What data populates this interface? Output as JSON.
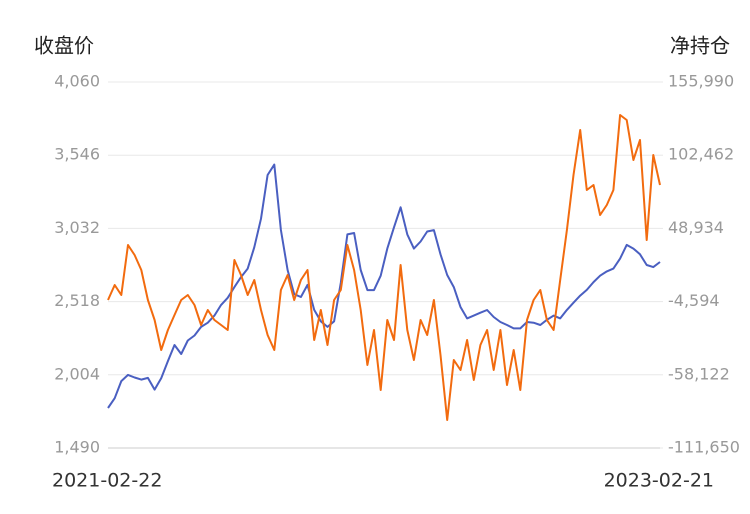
{
  "chart_data": {
    "type": "line",
    "y_title": "收盘价",
    "y2_title": "净持仓",
    "categories": [
      "2021-02-22",
      null,
      null,
      null,
      null,
      null,
      null,
      null,
      null,
      null,
      null,
      null,
      null,
      null,
      null,
      null,
      null,
      null,
      null,
      null,
      null,
      null,
      null,
      null,
      null,
      null,
      null,
      null,
      null,
      null,
      null,
      null,
      null,
      null,
      null,
      null,
      null,
      null,
      null,
      null,
      null,
      null,
      null,
      null,
      null,
      null,
      null,
      null,
      null,
      null,
      null,
      null,
      null,
      null,
      null,
      null,
      null,
      null,
      null,
      null,
      null,
      null,
      null,
      null,
      null,
      null,
      null,
      null,
      null,
      null,
      null,
      null,
      null,
      null,
      null,
      null,
      null,
      null,
      null,
      null,
      null,
      null,
      null,
      "2023-02-21"
    ],
    "series": [
      {
        "color": "#4a5fc1",
        "axis": "y",
        "values": [
          1771,
          1840,
          1960,
          2003,
          1985,
          1970,
          1982,
          1900,
          1980,
          2100,
          2213,
          2150,
          2245,
          2280,
          2340,
          2370,
          2420,
          2495,
          2545,
          2620,
          2690,
          2750,
          2900,
          3100,
          3407,
          3480,
          3021,
          2740,
          2570,
          2550,
          2635,
          2460,
          2380,
          2340,
          2380,
          2650,
          2990,
          3000,
          2740,
          2599,
          2599,
          2700,
          2890,
          3040,
          3180,
          2990,
          2890,
          2940,
          3010,
          3020,
          2850,
          2705,
          2620,
          2480,
          2400,
          2420,
          2440,
          2459,
          2410,
          2375,
          2354,
          2330,
          2330,
          2375,
          2370,
          2354,
          2390,
          2420,
          2400,
          2460,
          2510,
          2560,
          2600,
          2655,
          2700,
          2730,
          2750,
          2820,
          2916,
          2890,
          2850,
          2775,
          2760,
          2796
        ]
      },
      {
        "color": "#f26b0f",
        "axis": "y2",
        "values": [
          -3430,
          7540,
          232,
          36790,
          29480,
          18510,
          -3430,
          -18060,
          -39990,
          -25370,
          -14400,
          -3430,
          232,
          -7080,
          -21710,
          -10740,
          -18060,
          -21710,
          -25370,
          25830,
          14860,
          232,
          11200,
          -10740,
          -29020,
          -39990,
          3890,
          14860,
          -3430,
          11200,
          18510,
          -32680,
          -10740,
          -36330,
          -3430,
          3890,
          36790,
          18510,
          -10740,
          -50960,
          -25370,
          -69240,
          -18060,
          -32680,
          22170,
          -25370,
          -47310,
          -18060,
          -29020,
          -3430,
          -43650,
          -91180,
          -47310,
          -54620,
          -32680,
          -61930,
          -36330,
          -25370,
          -54620,
          -25370,
          -65590,
          -39990,
          -69240,
          -18060,
          -3430,
          3890,
          -18060,
          -25370,
          11200,
          47760,
          87980,
          120890,
          77010,
          80670,
          58730,
          66040,
          77010,
          131860,
          128200,
          98950,
          113580,
          40440,
          102610,
          80670
        ]
      }
    ],
    "ylim": [
      1490,
      4060
    ],
    "yticks": [
      {
        "value": 1490,
        "label": "1,490"
      },
      {
        "value": 2004,
        "label": "2,004"
      },
      {
        "value": 2518,
        "label": "2,518"
      },
      {
        "value": 3032,
        "label": "3,032"
      },
      {
        "value": 3546,
        "label": "3,546"
      },
      {
        "value": 4060,
        "label": "4,060"
      }
    ],
    "y2lim": [
      -111650,
      155990
    ],
    "y2ticks": [
      {
        "value": -111650,
        "label": "-111,650"
      },
      {
        "value": -58122,
        "label": "-58,122"
      },
      {
        "value": -4594,
        "label": "-4,594"
      },
      {
        "value": 48934,
        "label": "48,934"
      },
      {
        "value": 102462,
        "label": "102,462"
      },
      {
        "value": 155990,
        "label": "155,990"
      }
    ],
    "grid": true
  }
}
